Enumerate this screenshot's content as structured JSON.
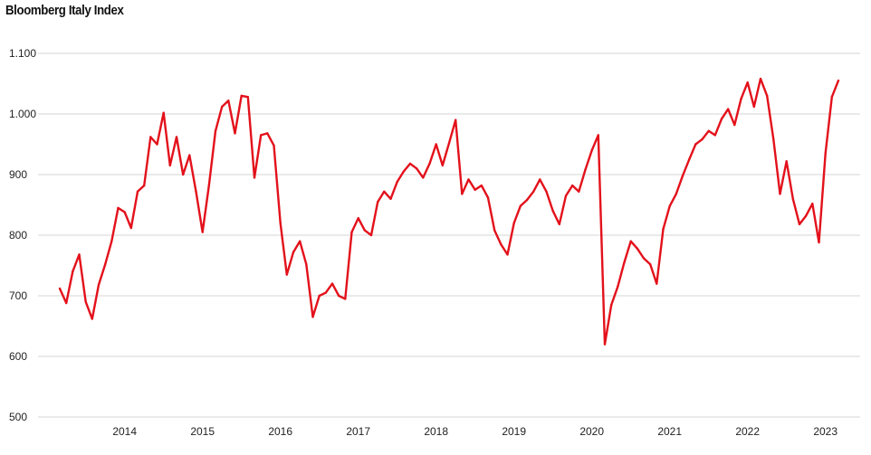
{
  "chart_data": {
    "type": "line",
    "title": "Bloomberg Italy Index",
    "xlabel": "",
    "ylabel": "",
    "ylim": [
      500,
      1100
    ],
    "y_ticks": [
      500,
      600,
      700,
      800,
      900,
      1000,
      1100
    ],
    "y_tick_labels": [
      "500",
      "600",
      "700",
      "800",
      "900",
      "1.000",
      "1.100"
    ],
    "x_tick_labels": [
      "2014",
      "2015",
      "2016",
      "2017",
      "2018",
      "2019",
      "2020",
      "2021",
      "2022",
      "2023"
    ],
    "xlim": [
      "2013-03",
      "2023-03"
    ],
    "grid": true,
    "legend": "none",
    "line_color": "#e3111b",
    "series": [
      {
        "x": [
          "2013-03",
          "2013-04",
          "2013-05",
          "2013-06",
          "2013-07",
          "2013-08",
          "2013-09",
          "2013-10",
          "2013-11",
          "2013-12",
          "2014-01",
          "2014-02",
          "2014-03",
          "2014-04",
          "2014-05",
          "2014-06",
          "2014-07",
          "2014-08",
          "2014-09",
          "2014-10",
          "2014-11",
          "2014-12",
          "2015-01",
          "2015-02",
          "2015-03",
          "2015-04",
          "2015-05",
          "2015-06",
          "2015-07",
          "2015-08",
          "2015-09",
          "2015-10",
          "2015-11",
          "2015-12",
          "2016-01",
          "2016-02",
          "2016-03",
          "2016-04",
          "2016-05",
          "2016-06",
          "2016-07",
          "2016-08",
          "2016-09",
          "2016-10",
          "2016-11",
          "2016-12",
          "2017-01",
          "2017-02",
          "2017-03",
          "2017-04",
          "2017-05",
          "2017-06",
          "2017-07",
          "2017-08",
          "2017-09",
          "2017-10",
          "2017-11",
          "2017-12",
          "2018-01",
          "2018-02",
          "2018-03",
          "2018-04",
          "2018-05",
          "2018-06",
          "2018-07",
          "2018-08",
          "2018-09",
          "2018-10",
          "2018-11",
          "2018-12",
          "2019-01",
          "2019-02",
          "2019-03",
          "2019-04",
          "2019-05",
          "2019-06",
          "2019-07",
          "2019-08",
          "2019-09",
          "2019-10",
          "2019-11",
          "2019-12",
          "2020-01",
          "2020-02",
          "2020-03",
          "2020-04",
          "2020-05",
          "2020-06",
          "2020-07",
          "2020-08",
          "2020-09",
          "2020-10",
          "2020-11",
          "2020-12",
          "2021-01",
          "2021-02",
          "2021-03",
          "2021-04",
          "2021-05",
          "2021-06",
          "2021-07",
          "2021-08",
          "2021-09",
          "2021-10",
          "2021-11",
          "2021-12",
          "2022-01",
          "2022-02",
          "2022-03",
          "2022-04",
          "2022-05",
          "2022-06",
          "2022-07",
          "2022-08",
          "2022-09",
          "2022-10",
          "2022-11",
          "2022-12",
          "2023-01",
          "2023-02",
          "2023-03"
        ],
        "values": [
          712,
          688,
          740,
          768,
          690,
          662,
          718,
          752,
          790,
          845,
          838,
          812,
          872,
          882,
          962,
          950,
          1002,
          915,
          962,
          900,
          932,
          872,
          805,
          882,
          972,
          1012,
          1022,
          968,
          1030,
          1028,
          895,
          965,
          968,
          948,
          820,
          735,
          772,
          790,
          752,
          665,
          700,
          705,
          720,
          700,
          695,
          805,
          828,
          808,
          800,
          855,
          872,
          860,
          888,
          905,
          918,
          910,
          895,
          918,
          950,
          915,
          952,
          990,
          868,
          892,
          875,
          882,
          862,
          808,
          785,
          768,
          820,
          848,
          858,
          872,
          892,
          872,
          840,
          818,
          865,
          882,
          872,
          908,
          940,
          965,
          620,
          685,
          715,
          755,
          790,
          778,
          762,
          752,
          720,
          810,
          848,
          868,
          898,
          925,
          950,
          958,
          972,
          965,
          992,
          1008,
          982,
          1025,
          1052,
          1012,
          1058,
          1030,
          958,
          868,
          922,
          860,
          818,
          832,
          852,
          788,
          935,
          1028,
          1055
        ]
      }
    ]
  }
}
